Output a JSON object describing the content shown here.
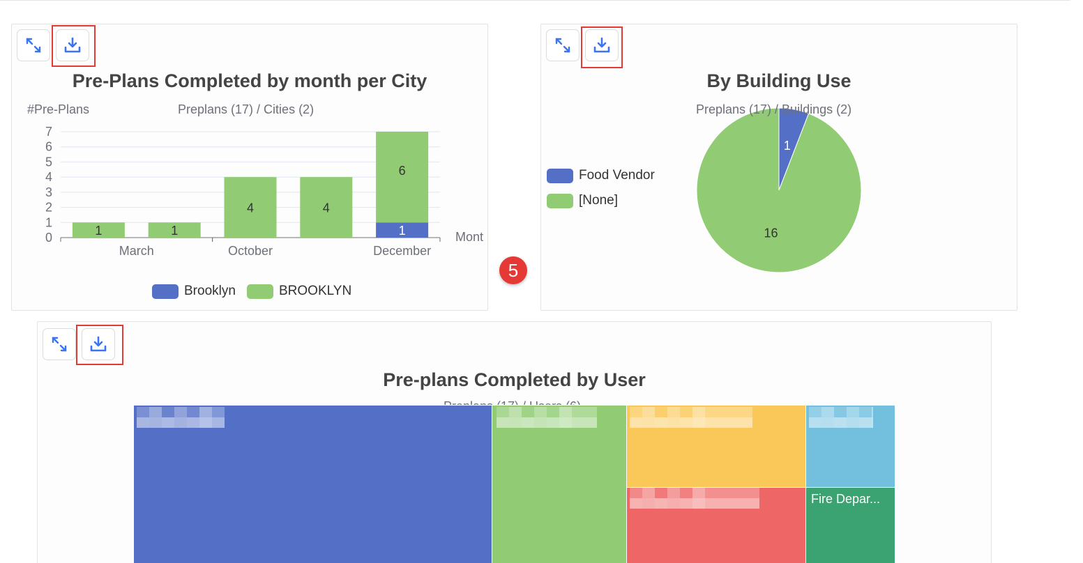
{
  "step_badge": "5",
  "icons": {
    "expand": "expand-arrows-icon",
    "download": "download-icon"
  },
  "colors": {
    "blue": "#5470c6",
    "green": "#91cc75",
    "yellow": "#fac858",
    "red": "#ee6666",
    "lightblue": "#73c0de",
    "teal": "#3ba272",
    "highlight": "#e53935",
    "icon": "#3b74f0"
  },
  "charts": {
    "city": {
      "title": "Pre-Plans Completed by month per City",
      "ylabel": "#Pre-Plans",
      "subtitle": "Preplans (17) / Cities (2)",
      "xlabel": "Mont",
      "legend": [
        "Brooklyn",
        "BROOKLYN"
      ]
    },
    "building": {
      "title": "By Building Use",
      "subtitle": "Preplans (17) / Buildings (2)",
      "legend": [
        "Food Vendor",
        "[None]"
      ]
    },
    "user": {
      "title": "Pre-plans Completed by User",
      "subtitle": "Preplans (17) / Users (6)",
      "visible_label": "Fire Depar..."
    }
  },
  "chart_data": [
    {
      "type": "bar",
      "title": "Pre-Plans Completed by month per City",
      "subtitle": "Preplans (17) / Cities (2)",
      "ylabel": "#Pre-Plans",
      "xlabel": "Mont",
      "stacked": true,
      "ylim": [
        0,
        7
      ],
      "yticks": [
        0,
        1,
        2,
        3,
        4,
        5,
        6,
        7
      ],
      "grid": true,
      "legend_position": "bottom",
      "categories": [
        "",
        "",
        "",
        "",
        ""
      ],
      "xtick_labels": [
        {
          "label": "March",
          "at": 0.5
        },
        {
          "label": "October",
          "at": 2.0
        },
        {
          "label": "December",
          "at": 4.0
        }
      ],
      "series": [
        {
          "name": "Brooklyn",
          "color": "#5470c6",
          "values": [
            0,
            0,
            0,
            0,
            1
          ]
        },
        {
          "name": "BROOKLYN",
          "color": "#91cc75",
          "values": [
            1,
            1,
            4,
            4,
            6
          ]
        }
      ]
    },
    {
      "type": "pie",
      "title": "By Building Use",
      "subtitle": "Preplans (17) / Buildings (2)",
      "legend_position": "left",
      "slices": [
        {
          "name": "Food Vendor",
          "value": 1,
          "color": "#5470c6"
        },
        {
          "name": "[None]",
          "value": 16,
          "color": "#91cc75"
        }
      ]
    },
    {
      "type": "treemap",
      "title": "Pre-plans Completed by User",
      "subtitle": "Preplans (17) / Users (6)",
      "cells": [
        {
          "label": "",
          "color": "#5470c6"
        },
        {
          "label": "",
          "color": "#91cc75"
        },
        {
          "label": "",
          "color": "#fac858"
        },
        {
          "label": "",
          "color": "#ee6666"
        },
        {
          "label": "",
          "color": "#73c0de"
        },
        {
          "label": "Fire Depar...",
          "color": "#3ba272"
        }
      ]
    }
  ]
}
